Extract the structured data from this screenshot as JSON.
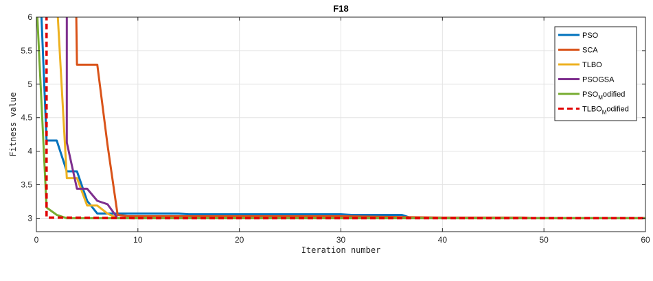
{
  "chart_data": {
    "type": "line",
    "title": "F18",
    "xlabel": "Iteration number",
    "ylabel": "Fitness value",
    "xlim": [
      0,
      60
    ],
    "ylim": [
      2.8,
      6
    ],
    "xticks": [
      0,
      10,
      20,
      30,
      40,
      50,
      60
    ],
    "yticks": [
      3,
      3.5,
      4,
      4.5,
      5,
      5.5,
      6
    ],
    "grid": true,
    "legend_position": "top-right",
    "series": [
      {
        "name": "PSO",
        "color": "#0072BD",
        "dash": "solid",
        "points": [
          [
            0,
            6.3
          ],
          [
            0.5,
            6
          ],
          [
            1,
            4.16
          ],
          [
            2,
            4.16
          ],
          [
            3,
            3.7
          ],
          [
            4,
            3.7
          ],
          [
            5,
            3.26
          ],
          [
            6,
            3.07
          ],
          [
            14,
            3.07
          ],
          [
            15,
            3.06
          ],
          [
            30,
            3.06
          ],
          [
            31,
            3.05
          ],
          [
            36,
            3.05
          ],
          [
            37,
            3.0
          ],
          [
            60,
            3.0
          ]
        ]
      },
      {
        "name": "SCA",
        "color": "#D95319",
        "dash": "solid",
        "points": [
          [
            3.9,
            6.3
          ],
          [
            4,
            5.29
          ],
          [
            6,
            5.29
          ],
          [
            7,
            4.1
          ],
          [
            8,
            3.05
          ],
          [
            9,
            3.03
          ],
          [
            30,
            3.03
          ],
          [
            40,
            3.01
          ],
          [
            48,
            3.01
          ],
          [
            49,
            3.0
          ],
          [
            60,
            3.0
          ]
        ]
      },
      {
        "name": "TLBO",
        "color": "#EDB120",
        "dash": "solid",
        "points": [
          [
            2,
            6.3
          ],
          [
            3,
            3.6
          ],
          [
            4,
            3.6
          ],
          [
            5,
            3.19
          ],
          [
            6,
            3.19
          ],
          [
            7,
            3.07
          ],
          [
            8,
            3.0
          ],
          [
            60,
            3.0
          ]
        ]
      },
      {
        "name": "PSOGSA",
        "color": "#7E2F8E",
        "dash": "solid",
        "points": [
          [
            3,
            6.3
          ],
          [
            3,
            4.13
          ],
          [
            4,
            3.44
          ],
          [
            5,
            3.44
          ],
          [
            6,
            3.26
          ],
          [
            7,
            3.21
          ],
          [
            8,
            3.0
          ],
          [
            60,
            3.0
          ]
        ]
      },
      {
        "name": "PSO_Modified",
        "color": "#77AC30",
        "dash": "solid",
        "points": [
          [
            0,
            6.3
          ],
          [
            1,
            3.16
          ],
          [
            2,
            3.05
          ],
          [
            3,
            3.0
          ],
          [
            60,
            3.0
          ]
        ]
      },
      {
        "name": "TLBO_Modified",
        "color": "#E00000",
        "dash": "dashed",
        "points": [
          [
            1,
            6.3
          ],
          [
            1,
            3.01
          ],
          [
            3,
            3.01
          ],
          [
            10,
            3.0
          ],
          [
            60,
            3.0
          ]
        ]
      }
    ]
  },
  "legend": [
    {
      "base": "PSO",
      "sub": "",
      "tail": ""
    },
    {
      "base": "SCA",
      "sub": "",
      "tail": ""
    },
    {
      "base": "TLBO",
      "sub": "",
      "tail": ""
    },
    {
      "base": "PSOGSA",
      "sub": "",
      "tail": ""
    },
    {
      "base": "PSO",
      "sub": "M",
      "tail": "odified"
    },
    {
      "base": "TLBO",
      "sub": "M",
      "tail": "odified"
    }
  ]
}
